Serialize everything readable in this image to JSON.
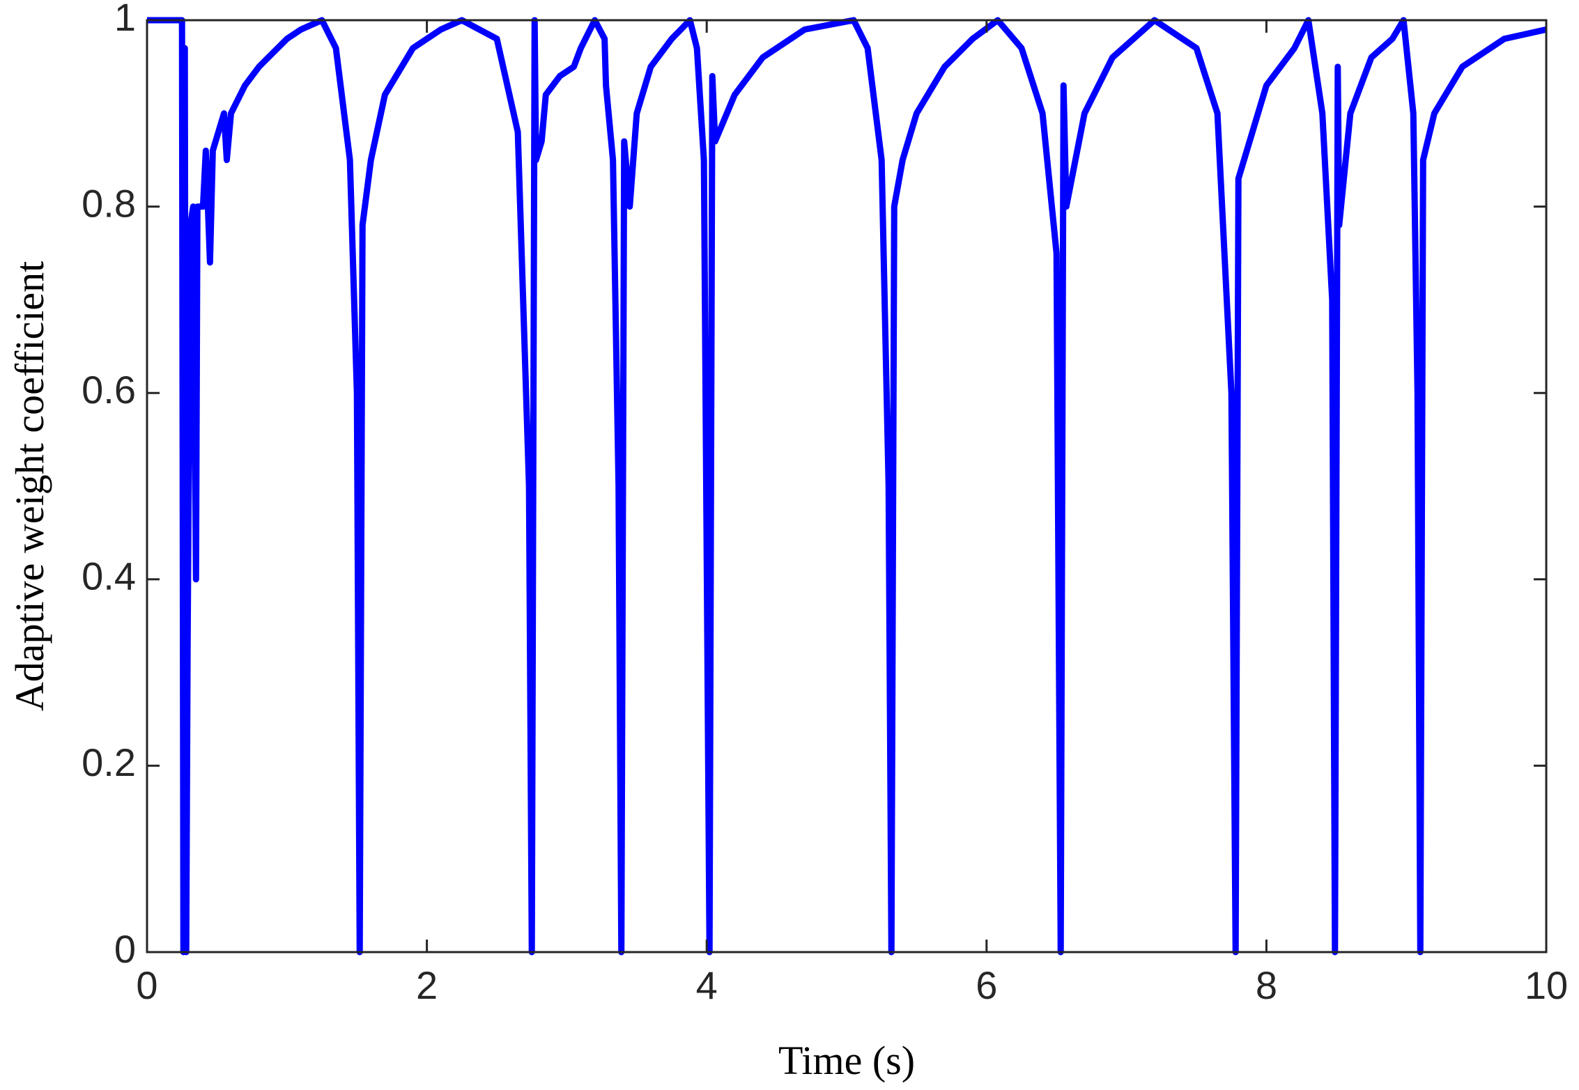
{
  "chart_data": {
    "type": "line",
    "xlabel": "Time (s)",
    "ylabel": "Adaptive weight coefficient",
    "x": [
      0,
      0.25,
      0.26,
      0.27,
      0.28,
      0.29,
      0.31,
      0.33,
      0.35,
      0.36,
      0.4,
      0.42,
      0.45,
      0.47,
      0.55,
      0.57,
      0.6,
      0.7,
      0.8,
      0.9,
      1.0,
      1.1,
      1.25,
      1.35,
      1.45,
      1.5,
      1.52,
      1.54,
      1.6,
      1.7,
      1.9,
      2.1,
      2.25,
      2.5,
      2.65,
      2.73,
      2.75,
      2.77,
      2.78,
      2.82,
      2.85,
      2.95,
      3.05,
      3.1,
      3.2,
      3.27,
      3.28,
      3.33,
      3.37,
      3.39,
      3.41,
      3.45,
      3.5,
      3.6,
      3.75,
      3.88,
      3.93,
      3.98,
      4.02,
      4.04,
      4.06,
      4.2,
      4.4,
      4.7,
      5.05,
      5.15,
      5.25,
      5.3,
      5.32,
      5.34,
      5.4,
      5.5,
      5.7,
      5.9,
      6.08,
      6.25,
      6.4,
      6.5,
      6.53,
      6.55,
      6.57,
      6.7,
      6.9,
      7.2,
      7.5,
      7.65,
      7.75,
      7.78,
      7.8,
      7.9,
      8.0,
      8.1,
      8.2,
      8.3,
      8.4,
      8.47,
      8.49,
      8.51,
      8.52,
      8.6,
      8.75,
      8.9,
      8.98,
      9.05,
      9.08,
      9.1,
      9.12,
      9.2,
      9.4,
      9.7,
      10
    ],
    "series": [
      {
        "name": "Adaptive weight coefficient",
        "color": "#0000ff",
        "values": [
          1,
          1,
          0,
          0.97,
          0,
          0.33,
          0.78,
          0.8,
          0.4,
          0.8,
          0.8,
          0.86,
          0.74,
          0.86,
          0.9,
          0.85,
          0.9,
          0.93,
          0.95,
          0.965,
          0.98,
          0.99,
          1.0,
          0.97,
          0.85,
          0.6,
          0,
          0.78,
          0.85,
          0.92,
          0.97,
          0.99,
          1.0,
          0.98,
          0.88,
          0.5,
          0,
          1.0,
          0.85,
          0.87,
          0.92,
          0.94,
          0.95,
          0.97,
          1.0,
          0.98,
          0.93,
          0.85,
          0.5,
          0,
          0.87,
          0.8,
          0.9,
          0.95,
          0.98,
          1.0,
          0.97,
          0.85,
          0,
          0.94,
          0.87,
          0.92,
          0.96,
          0.99,
          1.0,
          0.97,
          0.85,
          0.5,
          0,
          0.8,
          0.85,
          0.9,
          0.95,
          0.98,
          1.0,
          0.97,
          0.9,
          0.75,
          0,
          0.93,
          0.8,
          0.9,
          0.96,
          1.0,
          0.97,
          0.9,
          0.6,
          0,
          0.83,
          0.88,
          0.93,
          0.95,
          0.97,
          1.0,
          0.9,
          0.7,
          0,
          0.95,
          0.78,
          0.9,
          0.96,
          0.98,
          1.0,
          0.9,
          0.6,
          0,
          0.85,
          0.9,
          0.95,
          0.98,
          0.99
        ]
      }
    ],
    "xlim": [
      0,
      10
    ],
    "xticks": [
      0,
      2,
      4,
      6,
      8,
      10
    ],
    "ylim": [
      0,
      1
    ],
    "yticks": [
      0,
      0.2,
      0.4,
      0.6,
      0.8,
      1
    ],
    "grid": false
  }
}
